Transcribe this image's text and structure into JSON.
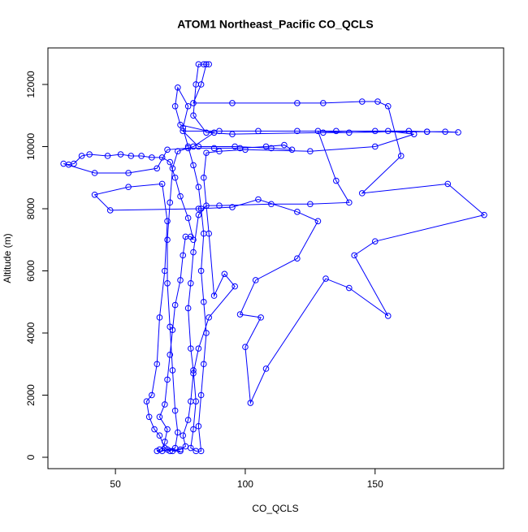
{
  "chart_data": {
    "type": "line",
    "markers": true,
    "title": "ATOM1 Northeast_Pacific CO_QCLS",
    "x_label": "CO_QCLS",
    "y_label": "Altitude (m)",
    "color": "#0000ff",
    "xlim": [
      24,
      199.5
    ],
    "ylim": [
      -366,
      13176
    ],
    "xticks": [
      50,
      100,
      150
    ],
    "yticks": [
      0,
      2000,
      4000,
      6000,
      8000,
      10000,
      12000
    ],
    "x": [
      72,
      75,
      70,
      68,
      69,
      70,
      67,
      69,
      70,
      71,
      72,
      73,
      75,
      76,
      77,
      79,
      80,
      78,
      75,
      73,
      71,
      68,
      64,
      60,
      56,
      52,
      47,
      40,
      37,
      34,
      32,
      30,
      42,
      55,
      66,
      70,
      78,
      88,
      98,
      108,
      115,
      118,
      110,
      96,
      82,
      76,
      90,
      105,
      120,
      135,
      150,
      163,
      170,
      177,
      182,
      170,
      130,
      95,
      85,
      80,
      81,
      82,
      84,
      86,
      85,
      83,
      80,
      95,
      120,
      130,
      145,
      151,
      155,
      160,
      145,
      178,
      192,
      150,
      142,
      155,
      140,
      131,
      108,
      102,
      100,
      106,
      98,
      104,
      120,
      128,
      120,
      105,
      95,
      82,
      48,
      42,
      55,
      68,
      70,
      69,
      67,
      66,
      64,
      62,
      63,
      65,
      67,
      69,
      71,
      73,
      74,
      73,
      72,
      71,
      70,
      70,
      71,
      72,
      74,
      80,
      88,
      75,
      73,
      74,
      78,
      76,
      78,
      80,
      82,
      83,
      84,
      83,
      84,
      85,
      84,
      83,
      82,
      83,
      81,
      79,
      80,
      81,
      80,
      79,
      78,
      79,
      80,
      82,
      85,
      90,
      110,
      125,
      140,
      135,
      128,
      140,
      155,
      165,
      150,
      125,
      100,
      90,
      85,
      84,
      86,
      88,
      92,
      96,
      86,
      82,
      80,
      79,
      78,
      76,
      77,
      75,
      66,
      67
    ],
    "values": [
      200,
      200,
      250,
      200,
      500,
      900,
      1300,
      1700,
      2500,
      3300,
      4100,
      4900,
      5700,
      6500,
      7100,
      7100,
      7000,
      7700,
      8400,
      9000,
      9500,
      9650,
      9650,
      9700,
      9700,
      9750,
      9700,
      9750,
      9700,
      9450,
      9420,
      9450,
      9150,
      9150,
      9300,
      9900,
      9950,
      9950,
      9950,
      10000,
      10050,
      9900,
      9950,
      10000,
      10000,
      10500,
      10500,
      10500,
      10500,
      10500,
      10500,
      10500,
      10480,
      10480,
      10460,
      10480,
      10450,
      10400,
      10450,
      11000,
      12000,
      12650,
      12650,
      12650,
      12650,
      12000,
      11400,
      11400,
      11400,
      11400,
      11450,
      11450,
      11300,
      9700,
      8500,
      8800,
      7800,
      6950,
      6500,
      4550,
      5450,
      5750,
      2850,
      1750,
      3550,
      4500,
      4600,
      5700,
      6400,
      7600,
      7900,
      8300,
      8050,
      8000,
      7950,
      8450,
      8700,
      8800,
      7600,
      6000,
      4500,
      3000,
      2000,
      1800,
      1300,
      900,
      700,
      300,
      200,
      300,
      800,
      1500,
      2800,
      4200,
      5600,
      7000,
      8200,
      9300,
      9850,
      10000,
      10450,
      10700,
      11300,
      11900,
      11300,
      10600,
      10000,
      9400,
      8700,
      8000,
      7200,
      6000,
      5000,
      4000,
      3000,
      2000,
      1000,
      200,
      200,
      300,
      900,
      1800,
      2800,
      3500,
      4800,
      5600,
      6600,
      7800,
      8100,
      8100,
      8150,
      8150,
      8200,
      8900,
      10500,
      10450,
      10500,
      10400,
      10000,
      9850,
      9900,
      9850,
      9800,
      9000,
      7200,
      5200,
      5900,
      5500,
      4500,
      3500,
      2700,
      1800,
      1200,
      700,
      350,
      250,
      200,
      250
    ]
  }
}
